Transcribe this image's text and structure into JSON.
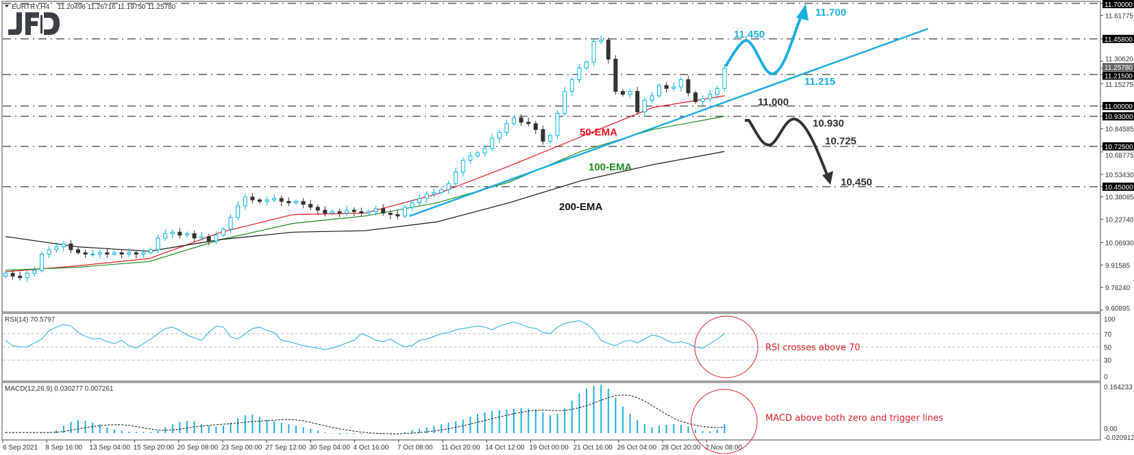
{
  "header": {
    "symbol": "EURTRY,H4",
    "ohlc": "11.20496 11.26716 11.19750 11.25780",
    "logo": "JFD"
  },
  "chart_data": [
    {
      "type": "candlestick",
      "symbol": "EURTRY",
      "timeframe": "H4",
      "ylim": [
        9.60895,
        11.7
      ],
      "x_tick_labels": [
        "6 Sep 2021",
        "8 Sep 16:00",
        "13 Sep 04:00",
        "15 Sep 20:00",
        "20 Sep 08:00",
        "23 Sep 00:00",
        "27 Sep 12:00",
        "30 Sep 04:00",
        "4 Oct 16:00",
        "7 Oct 08:00",
        "11 Oct 20:00",
        "14 Oct 12:00",
        "19 Oct 00:00",
        "21 Oct 16:00",
        "26 Oct 04:00",
        "28 Oct 20:00",
        "2 Nov 08:00"
      ],
      "y_tick_labels": [
        "11.61775",
        "11.30620",
        "11.15275",
        "10.84585",
        "10.68775",
        "10.53430",
        "10.38085",
        "10.22740",
        "10.06930",
        "9.91585",
        "9.76240",
        "9.60895"
      ],
      "closes": [
        9.86,
        9.84,
        9.83,
        9.86,
        9.88,
        9.99,
        10.02,
        10.04,
        10.06,
        10.02,
        10.0,
        9.99,
        9.99,
        10.0,
        9.99,
        10.0,
        9.99,
        10.0,
        9.99,
        10.0,
        10.02,
        10.1,
        10.13,
        10.14,
        10.12,
        10.13,
        10.1,
        10.11,
        10.08,
        10.12,
        10.16,
        10.24,
        10.32,
        10.38,
        10.36,
        10.35,
        10.36,
        10.37,
        10.35,
        10.34,
        10.35,
        10.33,
        10.31,
        10.29,
        10.27,
        10.28,
        10.27,
        10.29,
        10.28,
        10.27,
        10.28,
        10.3,
        10.27,
        10.26,
        10.25,
        10.31,
        10.34,
        10.37,
        10.4,
        10.41,
        10.43,
        10.47,
        10.55,
        10.63,
        10.66,
        10.68,
        10.71,
        10.78,
        10.82,
        10.88,
        10.92,
        10.89,
        10.88,
        10.84,
        10.76,
        10.8,
        10.95,
        11.1,
        11.18,
        11.26,
        11.3,
        11.44,
        11.45,
        11.32,
        11.1,
        11.08,
        11.1,
        10.96,
        11.04,
        11.07,
        11.14,
        11.12,
        11.13,
        11.18,
        11.09,
        11.03,
        11.05,
        11.08,
        11.12,
        11.2578
      ],
      "moving_averages": [
        {
          "name": "50-EMA",
          "color": "#e8141c",
          "values": [
            9.87,
            9.91,
            9.96,
            10.14,
            10.26,
            10.27,
            10.4,
            10.59,
            10.79,
            10.99,
            11.07
          ]
        },
        {
          "name": "100-EMA",
          "color": "#1e8c1e",
          "values": [
            9.88,
            9.9,
            9.94,
            10.09,
            10.2,
            10.25,
            10.34,
            10.48,
            10.69,
            10.84,
            10.93
          ]
        },
        {
          "name": "200-EMA",
          "color": "#111111",
          "values": [
            10.11,
            10.04,
            10.01,
            10.09,
            10.14,
            10.15,
            10.21,
            10.34,
            10.49,
            10.6,
            10.69
          ]
        }
      ],
      "current_price": "11.25780",
      "levels": [
        "11.70000",
        "11.45800",
        "11.21500",
        "11.00000",
        "10.93000",
        "10.72500",
        "10.45000"
      ],
      "trendline": {
        "start": {
          "bar": 55.6,
          "price": 10.249
        },
        "end": {
          "bar": 127,
          "price": 11.527
        }
      },
      "annotations": {
        "up_target_1": "11.450",
        "up_target_2": "11.700",
        "support_trend": "11.215",
        "level_11": "11.000",
        "down_1": "10.930",
        "down_2": "10.725",
        "down_3": "10.450"
      },
      "colors": {
        "bull": "#00b4e6",
        "bear": "#333333",
        "up_scenario": "#1eaee0",
        "down_scenario": "#333333"
      }
    },
    {
      "type": "line",
      "title": "RSI(14) 70.5797",
      "ylim": [
        0,
        100
      ],
      "y_tick_labels": [
        "100",
        "70",
        "50",
        "30",
        "0"
      ],
      "levels": [
        70,
        50,
        30
      ],
      "values": [
        60,
        52,
        50,
        50,
        56,
        62,
        75,
        80,
        84,
        82,
        72,
        66,
        62,
        63,
        58,
        55,
        60,
        52,
        48,
        55,
        62,
        70,
        78,
        80,
        75,
        68,
        64,
        60,
        72,
        82,
        80,
        65,
        62,
        70,
        78,
        80,
        75,
        72,
        60,
        58,
        55,
        52,
        50,
        48,
        46,
        48,
        52,
        56,
        60,
        70,
        66,
        60,
        58,
        62,
        55,
        50,
        52,
        60,
        62,
        66,
        70,
        72,
        76,
        78,
        80,
        82,
        80,
        76,
        82,
        85,
        88,
        84,
        80,
        78,
        72,
        70,
        80,
        86,
        88,
        90,
        85,
        76,
        60,
        55,
        52,
        58,
        60,
        56,
        62,
        68,
        66,
        60,
        56,
        58,
        55,
        50,
        48,
        55,
        62,
        70.58
      ],
      "annotation": "RSI crosses above 70"
    },
    {
      "type": "bar",
      "title": "MACD(12,26,9) 0.030277 0.007261",
      "ylim": [
        -0.020912,
        0.164233
      ],
      "y_tick_labels": [
        "0.164233",
        "0.00",
        "-0.020912"
      ],
      "values": [
        0.002,
        0.002,
        0.002,
        0.002,
        0.002,
        0.002,
        0.002,
        0.01,
        0.025,
        0.038,
        0.045,
        0.042,
        0.035,
        0.03,
        0.02,
        0.012,
        0.008,
        0.005,
        0.004,
        0.004,
        0.004,
        0.008,
        0.02,
        0.03,
        0.038,
        0.042,
        0.04,
        0.03,
        0.025,
        0.022,
        0.025,
        0.035,
        0.05,
        0.06,
        0.062,
        0.055,
        0.045,
        0.04,
        0.035,
        0.03,
        0.025,
        0.02,
        0.015,
        0.008,
        0.003,
        -0.002,
        -0.004,
        -0.003,
        -0.002,
        -0.003,
        -0.002,
        -0.001,
        -0.002,
        -0.003,
        -0.002,
        0.003,
        0.01,
        0.015,
        0.02,
        0.025,
        0.03,
        0.035,
        0.04,
        0.045,
        0.055,
        0.065,
        0.07,
        0.075,
        0.078,
        0.08,
        0.082,
        0.085,
        0.083,
        0.08,
        0.07,
        0.06,
        0.065,
        0.085,
        0.11,
        0.135,
        0.15,
        0.16,
        0.164,
        0.15,
        0.12,
        0.09,
        0.065,
        0.045,
        0.03,
        0.02,
        0.025,
        0.028,
        0.03,
        0.028,
        0.022,
        0.012,
        0.008,
        0.006,
        0.012,
        0.030277
      ],
      "color": "#1eaee0",
      "annotation": "MACD above both zero and trigger lines"
    }
  ]
}
